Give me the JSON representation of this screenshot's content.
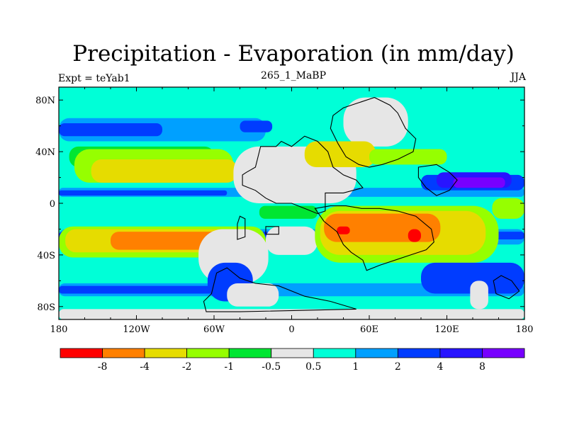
{
  "header": {
    "title": "Precipitation - Evaporation (in mm/day)",
    "left": "Expt = teYab1",
    "center": "265_1_MaBP",
    "right": "JJA"
  },
  "axes": {
    "x_ticks": [
      {
        "value": -180,
        "label": "180"
      },
      {
        "value": -120,
        "label": "120W"
      },
      {
        "value": -60,
        "label": "60W"
      },
      {
        "value": 0,
        "label": "0"
      },
      {
        "value": 60,
        "label": "60E"
      },
      {
        "value": 120,
        "label": "120E"
      },
      {
        "value": 180,
        "label": "180"
      }
    ],
    "y_ticks": [
      {
        "value": 80,
        "label": "80N"
      },
      {
        "value": 40,
        "label": "40N"
      },
      {
        "value": 0,
        "label": "0"
      },
      {
        "value": -40,
        "label": "40S"
      },
      {
        "value": -80,
        "label": "80S"
      }
    ],
    "xlim": [
      -180,
      180
    ],
    "ylim": [
      -90,
      90
    ]
  },
  "colorbar": {
    "colors": [
      "#ff0000",
      "#ff8000",
      "#e6dc00",
      "#96ff00",
      "#00e632",
      "#e6e6e6",
      "#00ffd7",
      "#00a0ff",
      "#003cff",
      "#2814ff",
      "#7800ff"
    ],
    "labels": [
      "-8",
      "-4",
      "-2",
      "-1",
      "-0.5",
      "0.5",
      "1",
      "2",
      "4",
      "8"
    ]
  },
  "field": {
    "background": "#00ffd7",
    "zones": [
      {
        "color": "#00a0ff",
        "lon": [
          -180,
          180
        ],
        "lat": [
          -32,
          -20
        ]
      },
      {
        "color": "#003cff",
        "lon": [
          -180,
          180
        ],
        "lat": [
          -28,
          -22
        ]
      },
      {
        "color": "#00a0ff",
        "lon": [
          -180,
          180
        ],
        "lat": [
          -72,
          -62
        ]
      },
      {
        "color": "#003cff",
        "lon": [
          -180,
          -60
        ],
        "lat": [
          -70,
          -64
        ]
      },
      {
        "color": "#00a0ff",
        "lon": [
          -180,
          180
        ],
        "lat": [
          5,
          12
        ]
      },
      {
        "color": "#003cff",
        "lon": [
          -180,
          -50
        ],
        "lat": [
          6,
          10
        ]
      },
      {
        "color": "#00a0ff",
        "lon": [
          -180,
          -20
        ],
        "lat": [
          48,
          66
        ]
      },
      {
        "color": "#003cff",
        "lon": [
          -180,
          -100
        ],
        "lat": [
          52,
          62
        ]
      },
      {
        "color": "#003cff",
        "lon": [
          -40,
          -15
        ],
        "lat": [
          55,
          64
        ]
      },
      {
        "color": "#e6e6e6",
        "lon": [
          -180,
          180
        ],
        "lat": [
          -90,
          -82
        ]
      },
      {
        "color": "#00e632",
        "lon": [
          -172,
          -60
        ],
        "lat": [
          28,
          44
        ]
      },
      {
        "color": "#96ff00",
        "lon": [
          -168,
          -45
        ],
        "lat": [
          16,
          42
        ]
      },
      {
        "color": "#e6dc00",
        "lon": [
          -155,
          -42
        ],
        "lat": [
          16,
          34
        ]
      },
      {
        "color": "#96ff00",
        "lon": [
          -180,
          -20
        ],
        "lat": [
          -18,
          -42
        ]
      },
      {
        "color": "#e6dc00",
        "lon": [
          -175,
          -40
        ],
        "lat": [
          -38,
          -20
        ]
      },
      {
        "color": "#ff8000",
        "lon": [
          -140,
          -42
        ],
        "lat": [
          -36,
          -22
        ]
      },
      {
        "color": "#e6e6e6",
        "lon": [
          -72,
          -18
        ],
        "lat": [
          -62,
          -20
        ]
      },
      {
        "color": "#e6e6e6",
        "lon": [
          -20,
          20
        ],
        "lat": [
          -40,
          -18
        ]
      },
      {
        "color": "#e6e6e6",
        "lon": [
          -45,
          50
        ],
        "lat": [
          0,
          44
        ]
      },
      {
        "color": "#e6e6e6",
        "lon": [
          40,
          90
        ],
        "lat": [
          44,
          82
        ]
      },
      {
        "color": "#e6dc00",
        "lon": [
          10,
          65
        ],
        "lat": [
          28,
          48
        ]
      },
      {
        "color": "#96ff00",
        "lon": [
          60,
          120
        ],
        "lat": [
          30,
          42
        ]
      },
      {
        "color": "#00e632",
        "lon": [
          -25,
          20
        ],
        "lat": [
          -12,
          -2
        ]
      },
      {
        "color": "#96ff00",
        "lon": [
          18,
          160
        ],
        "lat": [
          -46,
          -2
        ]
      },
      {
        "color": "#e6dc00",
        "lon": [
          22,
          150
        ],
        "lat": [
          -40,
          -6
        ]
      },
      {
        "color": "#ff8000",
        "lon": [
          25,
          115
        ],
        "lat": [
          -30,
          -8
        ]
      },
      {
        "color": "#ff0000",
        "lon": [
          35,
          45
        ],
        "lat": [
          -24,
          -18
        ]
      },
      {
        "color": "#ff0000",
        "lon": [
          90,
          100
        ],
        "lat": [
          -30,
          -20
        ]
      },
      {
        "color": "#003cff",
        "lon": [
          100,
          180
        ],
        "lat": [
          10,
          22
        ]
      },
      {
        "color": "#2814ff",
        "lon": [
          112,
          170
        ],
        "lat": [
          12,
          24
        ]
      },
      {
        "color": "#7800ff",
        "lon": [
          125,
          165
        ],
        "lat": [
          12,
          20
        ]
      },
      {
        "color": "#003cff",
        "lon": [
          100,
          180
        ],
        "lat": [
          -70,
          -46
        ]
      },
      {
        "color": "#2814ff",
        "lon": [
          -60,
          -40
        ],
        "lat": [
          -74,
          -54
        ]
      },
      {
        "color": "#003cff",
        "lon": [
          -65,
          -30
        ],
        "lat": [
          -76,
          -46
        ]
      },
      {
        "color": "#e6e6e6",
        "lon": [
          -50,
          -10
        ],
        "lat": [
          -80,
          -62
        ]
      },
      {
        "color": "#e6e6e6",
        "lon": [
          138,
          152
        ],
        "lat": [
          -82,
          -60
        ]
      },
      {
        "color": "#e6dc00",
        "lon": [
          162,
          180
        ],
        "lat": [
          -10,
          0
        ]
      },
      {
        "color": "#96ff00",
        "lon": [
          155,
          180
        ],
        "lat": [
          -12,
          4
        ]
      }
    ],
    "coastlines": [
      {
        "name": "continent-west",
        "points": [
          [
            -35,
            24
          ],
          [
            -28,
            28
          ],
          [
            -24,
            44
          ],
          [
            -12,
            44
          ],
          [
            -8,
            48
          ],
          [
            0,
            44
          ],
          [
            10,
            52
          ],
          [
            20,
            48
          ],
          [
            28,
            40
          ],
          [
            32,
            28
          ],
          [
            40,
            22
          ],
          [
            50,
            18
          ],
          [
            55,
            12
          ],
          [
            40,
            8
          ],
          [
            26,
            8
          ],
          [
            26,
            -6
          ],
          [
            20,
            -8
          ],
          [
            10,
            -4
          ],
          [
            0,
            0
          ],
          [
            -12,
            0
          ],
          [
            -20,
            4
          ],
          [
            -28,
            10
          ],
          [
            -38,
            14
          ],
          [
            -38,
            22
          ],
          [
            -35,
            24
          ]
        ]
      },
      {
        "name": "continent-south",
        "points": [
          [
            18,
            -4
          ],
          [
            30,
            -2
          ],
          [
            42,
            -2
          ],
          [
            54,
            -4
          ],
          [
            68,
            -4
          ],
          [
            82,
            -6
          ],
          [
            96,
            -10
          ],
          [
            108,
            -20
          ],
          [
            110,
            -30
          ],
          [
            104,
            -36
          ],
          [
            92,
            -40
          ],
          [
            80,
            -44
          ],
          [
            68,
            -48
          ],
          [
            58,
            -52
          ],
          [
            55,
            -44
          ],
          [
            46,
            -38
          ],
          [
            40,
            -32
          ],
          [
            35,
            -22
          ],
          [
            25,
            -14
          ],
          [
            18,
            -4
          ]
        ]
      },
      {
        "name": "continent-north",
        "points": [
          [
            32,
            68
          ],
          [
            40,
            74
          ],
          [
            52,
            78
          ],
          [
            64,
            82
          ],
          [
            76,
            76
          ],
          [
            82,
            70
          ],
          [
            88,
            58
          ],
          [
            96,
            50
          ],
          [
            94,
            40
          ],
          [
            82,
            34
          ],
          [
            70,
            30
          ],
          [
            60,
            28
          ],
          [
            52,
            30
          ],
          [
            42,
            36
          ],
          [
            36,
            46
          ],
          [
            30,
            58
          ],
          [
            32,
            68
          ]
        ]
      },
      {
        "name": "continent-east",
        "points": [
          [
            98,
            28
          ],
          [
            112,
            30
          ],
          [
            122,
            24
          ],
          [
            128,
            18
          ],
          [
            122,
            10
          ],
          [
            112,
            6
          ],
          [
            104,
            12
          ],
          [
            98,
            20
          ],
          [
            98,
            28
          ]
        ]
      },
      {
        "name": "polar-south",
        "points": [
          [
            -62,
            -70
          ],
          [
            -58,
            -54
          ],
          [
            -50,
            -50
          ],
          [
            -40,
            -58
          ],
          [
            -28,
            -62
          ],
          [
            -10,
            -64
          ],
          [
            10,
            -72
          ],
          [
            30,
            -76
          ],
          [
            50,
            -82
          ],
          [
            -40,
            -84
          ],
          [
            -66,
            -84
          ],
          [
            -68,
            -76
          ],
          [
            -62,
            -70
          ]
        ]
      },
      {
        "name": "island-south-1",
        "points": [
          [
            -40,
            -10
          ],
          [
            -36,
            -12
          ],
          [
            -36,
            -26
          ],
          [
            -42,
            -28
          ],
          [
            -42,
            -16
          ],
          [
            -40,
            -10
          ]
        ]
      },
      {
        "name": "island-south-2",
        "points": [
          [
            -20,
            -18
          ],
          [
            -10,
            -18
          ],
          [
            -10,
            -24
          ],
          [
            -20,
            -24
          ],
          [
            -20,
            -18
          ]
        ]
      },
      {
        "name": "island-east",
        "points": [
          [
            162,
            -56
          ],
          [
            170,
            -60
          ],
          [
            176,
            -68
          ],
          [
            168,
            -74
          ],
          [
            158,
            -70
          ],
          [
            156,
            -60
          ],
          [
            162,
            -56
          ]
        ]
      }
    ]
  }
}
